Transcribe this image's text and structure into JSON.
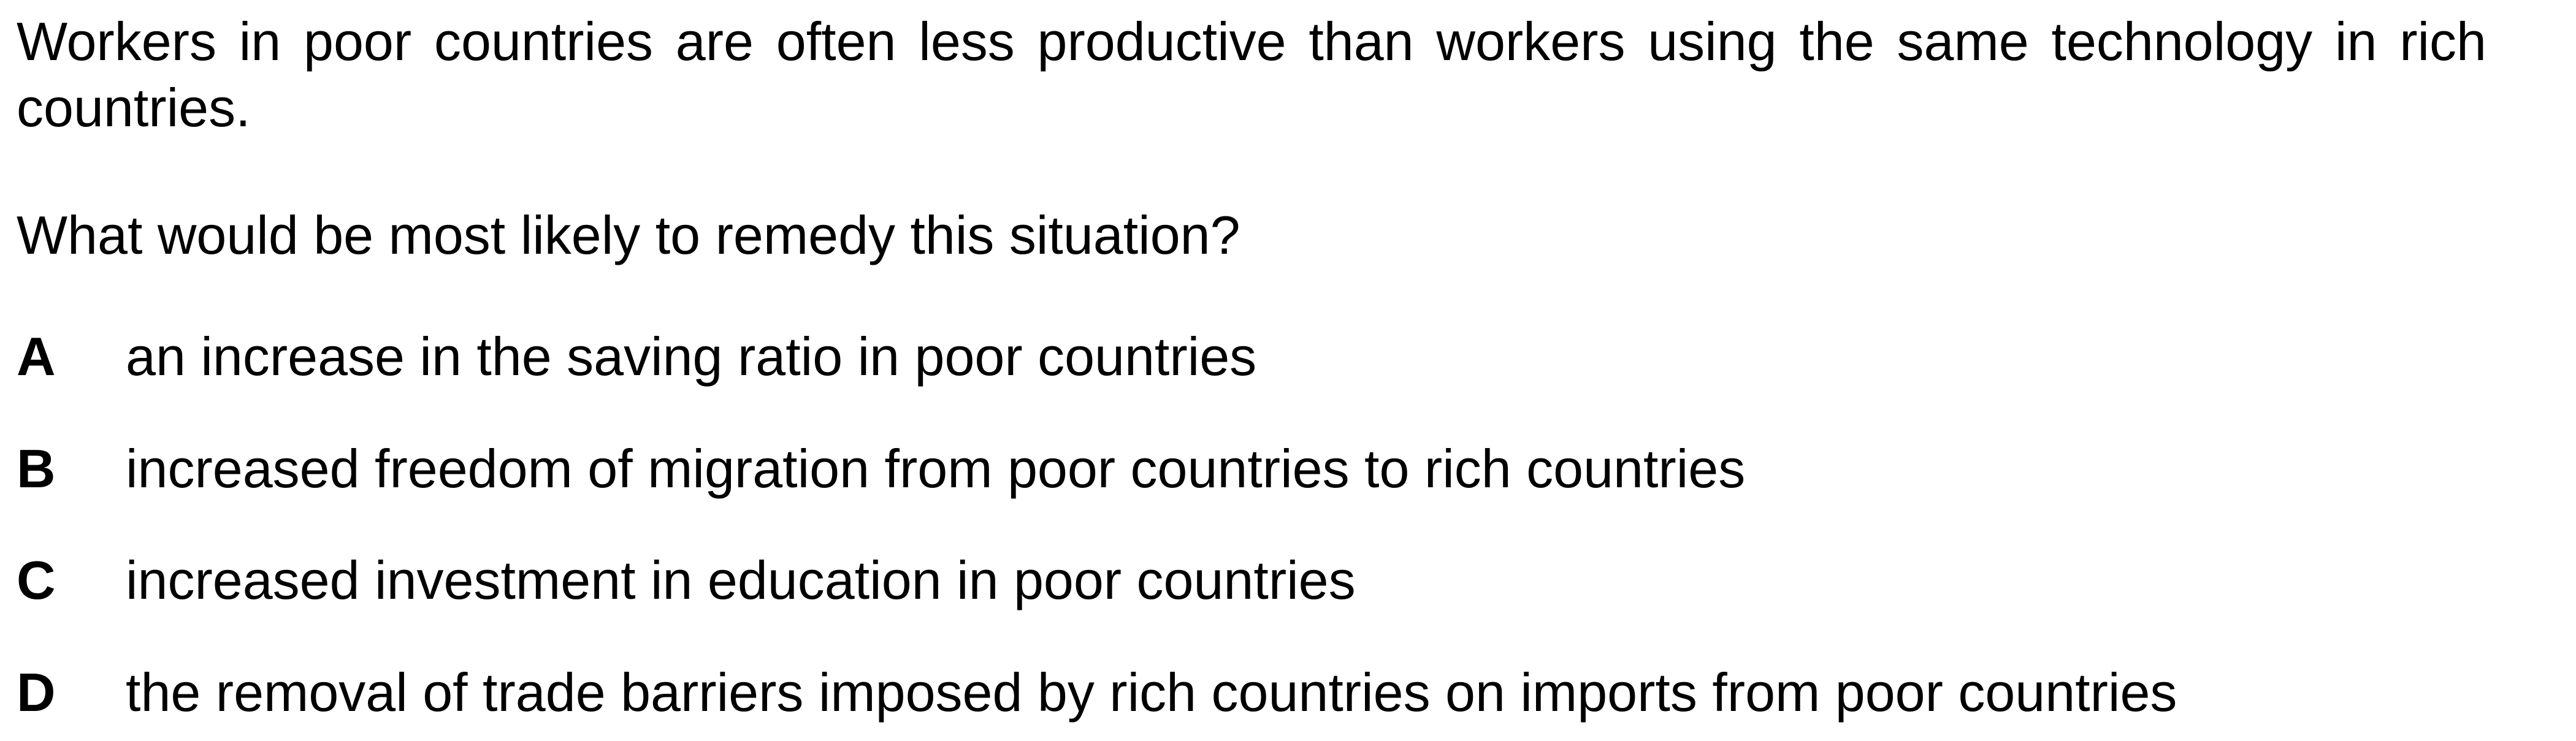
{
  "question": {
    "stem": "Workers in poor countries are often less productive than workers using the same technology in rich countries.",
    "prompt": "What would be most likely to remedy this situation?"
  },
  "options": [
    {
      "letter": "A",
      "text": "an increase in the saving ratio in poor countries"
    },
    {
      "letter": "B",
      "text": "increased freedom of migration from poor countries to rich countries"
    },
    {
      "letter": "C",
      "text": "increased investment in education in poor countries"
    },
    {
      "letter": "D",
      "text": "the removal of trade barriers imposed by rich countries on imports from poor countries"
    }
  ]
}
